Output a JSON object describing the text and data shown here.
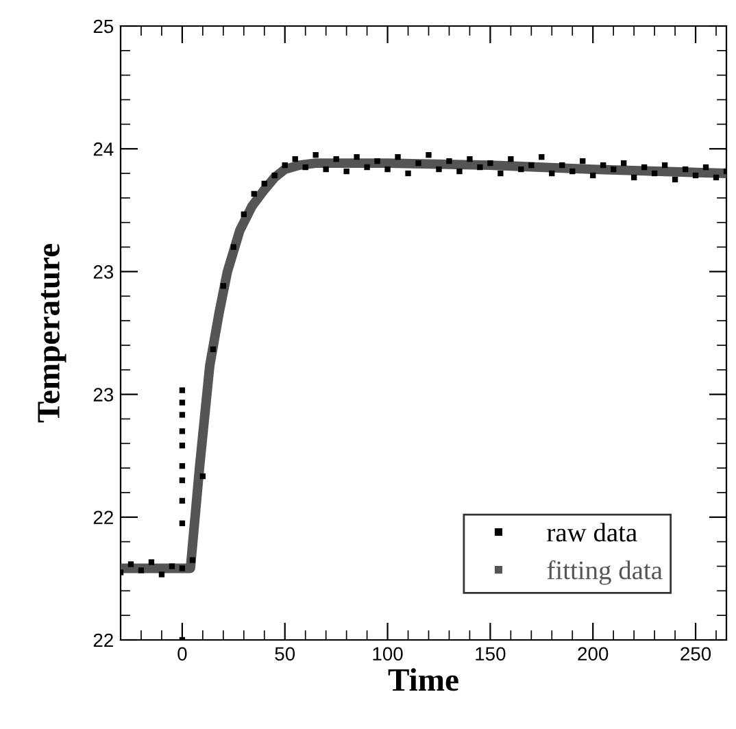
{
  "chart_data": {
    "type": "scatter",
    "xlabel": "Time",
    "ylabel": "Temperature",
    "xlim": [
      -30,
      265
    ],
    "xticks": [
      0,
      50,
      100,
      150,
      200,
      250
    ],
    "ylim": [
      21.6,
      24.6
    ],
    "yticks": [
      {
        "value": 21.6,
        "label": "22"
      },
      {
        "value": 22.2,
        "label": "22"
      },
      {
        "value": 22.8,
        "label": "23"
      },
      {
        "value": 23.4,
        "label": "23"
      },
      {
        "value": 24.0,
        "label": "24"
      },
      {
        "value": 24.6,
        "label": "25"
      }
    ],
    "grid": false,
    "legend": "bottom right",
    "series": [
      {
        "name": "raw data",
        "marker": "square",
        "color": "#000000",
        "x": [
          -30,
          -25,
          -20,
          -15,
          -10,
          -5,
          0,
          0,
          0,
          0,
          0,
          0,
          0,
          0,
          0,
          0,
          0,
          5,
          10,
          15,
          20,
          25,
          30,
          35,
          40,
          45,
          50,
          55,
          60,
          65,
          70,
          75,
          80,
          85,
          90,
          95,
          100,
          105,
          110,
          115,
          120,
          125,
          130,
          135,
          140,
          145,
          150,
          155,
          160,
          165,
          170,
          175,
          180,
          185,
          190,
          195,
          200,
          205,
          210,
          215,
          220,
          225,
          230,
          235,
          240,
          245,
          250,
          255,
          260,
          265
        ],
        "values": [
          21.93,
          21.97,
          21.94,
          21.98,
          21.92,
          21.96,
          21.95,
          22.82,
          22.76,
          22.7,
          22.62,
          22.55,
          22.45,
          22.38,
          22.28,
          22.17,
          21.6,
          21.99,
          22.4,
          23.02,
          23.33,
          23.52,
          23.68,
          23.78,
          23.83,
          23.87,
          23.92,
          23.95,
          23.91,
          23.97,
          23.9,
          23.95,
          23.89,
          23.96,
          23.91,
          23.94,
          23.9,
          23.96,
          23.88,
          23.93,
          23.97,
          23.9,
          23.94,
          23.89,
          23.95,
          23.91,
          23.93,
          23.88,
          23.95,
          23.9,
          23.92,
          23.96,
          23.88,
          23.92,
          23.89,
          23.94,
          23.87,
          23.92,
          23.9,
          23.93,
          23.86,
          23.91,
          23.88,
          23.92,
          23.85,
          23.9,
          23.87,
          23.91,
          23.86,
          23.89
        ]
      },
      {
        "name": "fitting data",
        "type": "line",
        "marker": "none",
        "color": "#555555",
        "x": [
          -30,
          0,
          4,
          8.5,
          13.4,
          18,
          22,
          28,
          34,
          40,
          45,
          50,
          57,
          65,
          100,
          150,
          200,
          265
        ],
        "values": [
          21.95,
          21.95,
          21.95,
          22.45,
          22.94,
          23.2,
          23.4,
          23.6,
          23.72,
          23.8,
          23.86,
          23.9,
          23.92,
          23.93,
          23.93,
          23.92,
          23.9,
          23.88
        ]
      }
    ]
  }
}
